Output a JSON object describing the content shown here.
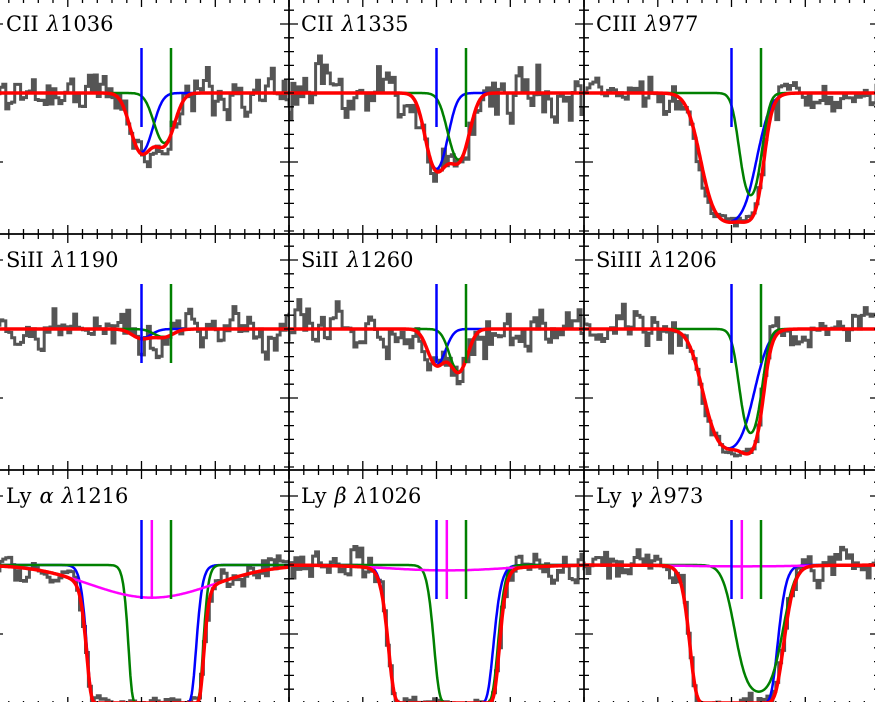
{
  "chart_data": {
    "type": "line",
    "title": "",
    "xlabel": "",
    "ylabel": "",
    "xlim": [
      -200,
      200
    ],
    "ylim": [
      -0.02,
      1.69
    ],
    "x_major_step": 100,
    "x_minor_step": 20,
    "y_major_ticks": [
      0.5,
      1.5
    ],
    "y_minor_step": 0.1,
    "grid": false,
    "colors": {
      "data": "#555555",
      "blue": "#0000ff",
      "green": "#008000",
      "magenta": "#ff00ff",
      "total": "#ff0000"
    },
    "panels": [
      {
        "ion": "CII",
        "greek": "",
        "lambda": "λ",
        "wave": "1036",
        "noise": 0.09,
        "seed": 11,
        "markers": [
          {
            "c": "blue",
            "v": 0
          },
          {
            "c": "green",
            "v": 40
          }
        ],
        "components": [
          {
            "c": "blue",
            "v0": 0,
            "tau": 0.56,
            "b": 19
          },
          {
            "c": "green",
            "v0": 31,
            "tau": 0.45,
            "b": 18
          }
        ]
      },
      {
        "ion": "CII",
        "greek": "",
        "lambda": "λ",
        "wave": "1335",
        "noise": 0.11,
        "seed": 23,
        "markers": [
          {
            "c": "blue",
            "v": 0
          },
          {
            "c": "green",
            "v": 40
          }
        ],
        "components": [
          {
            "c": "blue",
            "v0": 0,
            "tau": 0.8,
            "b": 18
          },
          {
            "c": "green",
            "v0": 30,
            "tau": 0.66,
            "b": 18
          }
        ]
      },
      {
        "ion": "CIII",
        "greek": "",
        "lambda": "λ",
        "wave": "977",
        "noise": 0.07,
        "seed": 37,
        "markers": [
          {
            "c": "blue",
            "v": 0
          },
          {
            "c": "green",
            "v": 40
          }
        ],
        "components": [
          {
            "c": "blue",
            "v0": -4,
            "tau": 2.7,
            "b": 32
          },
          {
            "c": "green",
            "v0": 26,
            "tau": 1.35,
            "b": 16
          }
        ]
      },
      {
        "ion": "SiII",
        "greek": "",
        "lambda": "λ",
        "wave": "1190",
        "noise": 0.08,
        "seed": 41,
        "markers": [
          {
            "c": "blue",
            "v": 0
          },
          {
            "c": "green",
            "v": 40
          }
        ],
        "components": [
          {
            "c": "blue",
            "v0": 0,
            "tau": 0.07,
            "b": 18
          },
          {
            "c": "green",
            "v0": 30,
            "tau": 0.06,
            "b": 18
          }
        ]
      },
      {
        "ion": "SiII",
        "greek": "",
        "lambda": "λ",
        "wave": "1260",
        "noise": 0.08,
        "seed": 53,
        "markers": [
          {
            "c": "blue",
            "v": 0
          },
          {
            "c": "green",
            "v": 40
          }
        ],
        "components": [
          {
            "c": "blue",
            "v0": 0,
            "tau": 0.3,
            "b": 16
          },
          {
            "c": "green",
            "v0": 30,
            "tau": 0.37,
            "b": 16
          }
        ]
      },
      {
        "ion": "SiIII",
        "greek": "",
        "lambda": "λ",
        "wave": "1206",
        "noise": 0.08,
        "seed": 67,
        "markers": [
          {
            "c": "blue",
            "v": 0
          },
          {
            "c": "green",
            "v": 40
          }
        ],
        "components": [
          {
            "c": "blue",
            "v0": -4,
            "tau": 2.0,
            "b": 32
          },
          {
            "c": "green",
            "v0": 26,
            "tau": 1.4,
            "b": 16
          }
        ]
      },
      {
        "ion": "Ly",
        "greek": "α",
        "lambda": "λ",
        "wave": "1216",
        "noise": 0.05,
        "seed": 71,
        "markers": [
          {
            "c": "blue",
            "v": 0
          },
          {
            "c": "magenta",
            "v": 14
          },
          {
            "c": "green",
            "v": 40
          }
        ],
        "components": [
          {
            "c": "blue",
            "v0": 0,
            "tau": 1000,
            "b": 28
          },
          {
            "c": "green",
            "v0": 33,
            "tau": 300,
            "b": 21
          },
          {
            "c": "magenta",
            "v0": 14,
            "tau": 0.27,
            "b": 110
          }
        ]
      },
      {
        "ion": "Ly",
        "greek": "β",
        "lambda": "λ",
        "wave": "1026",
        "noise": 0.07,
        "seed": 83,
        "markers": [
          {
            "c": "blue",
            "v": 0
          },
          {
            "c": "magenta",
            "v": 14
          },
          {
            "c": "green",
            "v": 40
          }
        ],
        "components": [
          {
            "c": "blue",
            "v0": 6,
            "tau": 170,
            "b": 31
          },
          {
            "c": "green",
            "v0": 40,
            "tau": 30,
            "b": 23
          },
          {
            "c": "magenta",
            "v0": 14,
            "tau": 0.04,
            "b": 110
          }
        ]
      },
      {
        "ion": "Ly",
        "greek": "γ",
        "lambda": "λ",
        "wave": "973",
        "noise": 0.07,
        "seed": 97,
        "markers": [
          {
            "c": "blue",
            "v": 0
          },
          {
            "c": "magenta",
            "v": 14
          },
          {
            "c": "green",
            "v": 40
          }
        ],
        "components": [
          {
            "c": "blue",
            "v0": 3,
            "tau": 50,
            "b": 29.5
          },
          {
            "c": "green",
            "v0": 37,
            "tau": 2.5,
            "b": 28
          },
          {
            "c": "magenta",
            "v0": 14,
            "tau": 0.01,
            "b": 110
          }
        ]
      }
    ]
  }
}
